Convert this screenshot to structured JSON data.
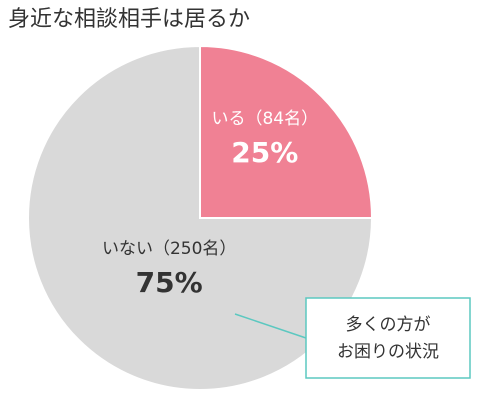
{
  "chart_data": {
    "type": "pie",
    "title": "身近な相談相手は居るか",
    "categories": [
      "いる（84名）",
      "いない（250名）"
    ],
    "values": [
      25,
      75
    ],
    "value_labels": [
      "25%",
      "75%"
    ],
    "colors": [
      "#f08194",
      "#d9d9d9"
    ],
    "annotation": [
      "多くの方が",
      "お困りの状況"
    ]
  }
}
